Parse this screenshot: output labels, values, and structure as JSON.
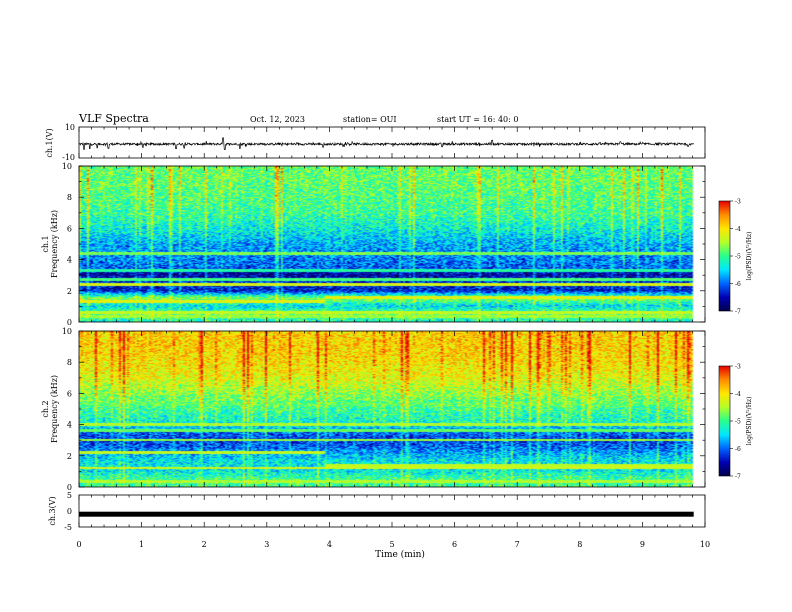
{
  "header": {
    "title": "VLF Spectra",
    "date": "Oct. 12, 2023",
    "station": "station= OUI",
    "start": "start UT =  16: 40: 0"
  },
  "colors": {
    "background": "#ffffff",
    "waveform": "#000000",
    "colormap": [
      "#00004a",
      "#0000b4",
      "#0064ff",
      "#00e6ff",
      "#28ff8c",
      "#b4ff28",
      "#ffe600",
      "#ff8c00",
      "#e60000"
    ]
  },
  "chart_data": [
    {
      "type": "line",
      "name": "ch1-waveform",
      "ylabel": "ch.1(V)",
      "ylim": [
        -10,
        10
      ],
      "yticks": [
        "10",
        "-10"
      ],
      "xlim": [
        0,
        10
      ],
      "baseline": -1.0,
      "spikes_min": [
        0.08,
        0.17,
        0.29,
        0.47,
        1.02,
        1.55,
        1.68,
        2.3,
        2.33,
        2.57,
        3.9,
        5.8,
        6.6,
        8.65,
        9.73
      ],
      "spike_depth_V": [
        -3.5,
        -3.0,
        -2.5,
        -2.8,
        -2.2,
        -3.0,
        -2.6,
        4.0,
        -3.5,
        -3.0,
        -2.0,
        -1.8,
        2.5,
        1.5,
        -1.5
      ]
    },
    {
      "type": "heatmap",
      "name": "ch1-spectrogram",
      "ylabel": "ch.1\nFrequency (kHz)",
      "ylim": [
        0,
        10
      ],
      "yticks": [
        "0",
        "2",
        "4",
        "6",
        "8",
        "10"
      ],
      "xlim": [
        0,
        10
      ],
      "colorbar": {
        "label": "log(PSD)(V²/Hz)",
        "range": [
          -7,
          -3
        ],
        "ticks": [
          "-3",
          "-4",
          "-5",
          "-6",
          "-7"
        ]
      },
      "profile_kHz": [
        0,
        0.5,
        1,
        1.5,
        2,
        2.5,
        3,
        3.5,
        4,
        5,
        6,
        7,
        8,
        9,
        10
      ],
      "profile_logPSD": [
        -5.2,
        -4.8,
        -5.5,
        -4.6,
        -6.4,
        -6.2,
        -6.6,
        -6.0,
        -5.9,
        -5.7,
        -5.3,
        -5.0,
        -4.9,
        -4.8,
        -4.8
      ],
      "tones_kHz": [
        0.3,
        0.6,
        1.3,
        2.4,
        2.7,
        3.3,
        4.4
      ],
      "tone_logPSD": [
        -4.6,
        -4.4,
        -4.2,
        -4.3,
        -4.9,
        -5.1,
        -4.7
      ],
      "tone_shift_min": 3.9,
      "tone_shifted_kHz": 1.55
    },
    {
      "type": "heatmap",
      "name": "ch2-spectrogram",
      "ylabel": "ch.2\nFrequency (kHz)",
      "ylim": [
        0,
        10
      ],
      "yticks": [
        "0",
        "2",
        "4",
        "6",
        "8",
        "10"
      ],
      "xlim": [
        0,
        10
      ],
      "colorbar": {
        "label": "log(PSD)(V²/Hz)",
        "range": [
          -7,
          -3
        ],
        "ticks": [
          "-3",
          "-4",
          "-5",
          "-6",
          "-7"
        ]
      },
      "profile_kHz": [
        0,
        0.5,
        1,
        1.5,
        2,
        2.5,
        3,
        3.5,
        4,
        5,
        6,
        7,
        8,
        9,
        10
      ],
      "profile_logPSD": [
        -5.0,
        -5.0,
        -5.4,
        -5.4,
        -5.6,
        -6.0,
        -6.2,
        -6.0,
        -5.3,
        -5.0,
        -4.6,
        -4.2,
        -4.0,
        -3.9,
        -3.9
      ],
      "tones_kHz": [
        0.3,
        1.2,
        2.2,
        3.0,
        3.6,
        4.0,
        5.3
      ],
      "tone_logPSD": [
        -4.5,
        -4.3,
        -4.4,
        -4.6,
        -4.8,
        -4.5,
        -5.0
      ],
      "tone_shift_min": 3.9,
      "tone_shifted_kHz": 1.35
    },
    {
      "type": "line",
      "name": "ch3-waveform",
      "ylabel": "ch.3(V)",
      "ylim": [
        -5,
        5
      ],
      "yticks": [
        "5",
        "0",
        "-5"
      ],
      "xlim": [
        0,
        10
      ],
      "level_V": -1.0,
      "xlabel": "Time (min)",
      "xticks": [
        "0",
        "1",
        "2",
        "3",
        "4",
        "5",
        "6",
        "7",
        "8",
        "9",
        "10"
      ],
      "data_end_min": 9.82
    }
  ]
}
